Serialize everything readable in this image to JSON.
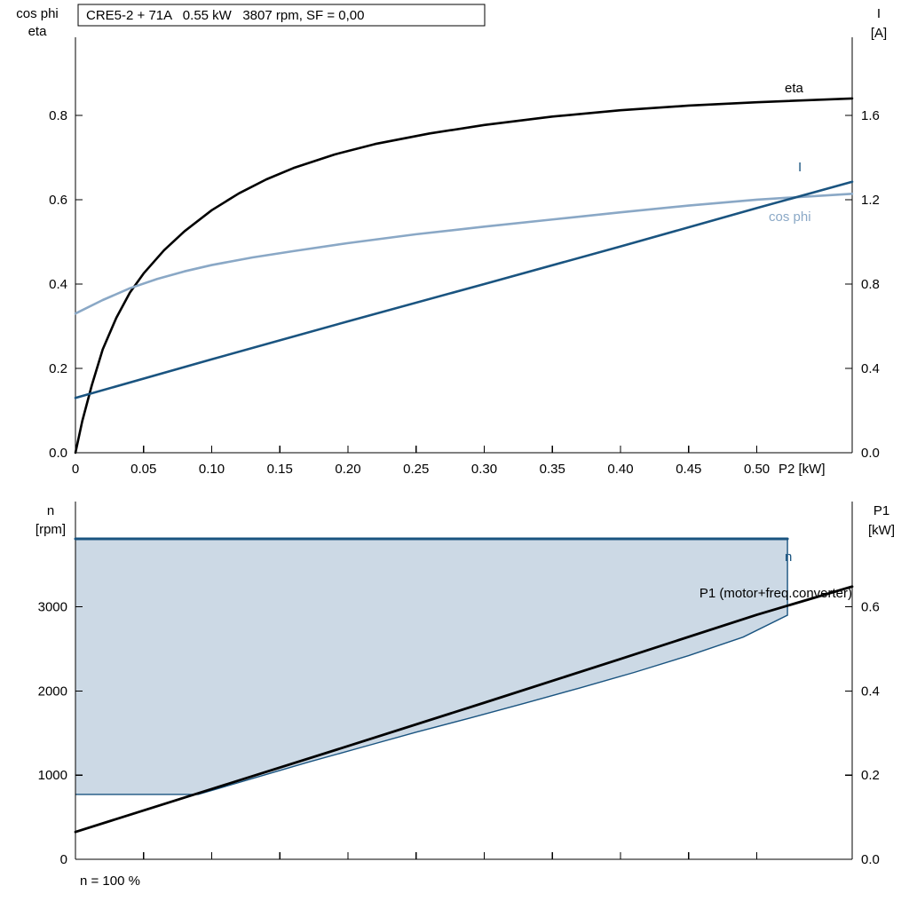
{
  "title_box": "CRE5-2 + 71A   0.55 kW   3807 rpm, SF = 0,00",
  "top_chart": {
    "left_header": [
      "cos phi",
      "eta"
    ],
    "right_header": [
      "I",
      "[A]"
    ],
    "x_axis_label": "P2 [kW]",
    "curve_labels": {
      "eta": "eta",
      "current": "I",
      "cos_phi": "cos phi"
    }
  },
  "bottom_chart": {
    "left_header": [
      "n",
      "[rpm]"
    ],
    "right_header": [
      "P1",
      "[kW]"
    ],
    "curve_labels": {
      "n": "n",
      "p1": "P1 (motor+freq.converter)"
    },
    "footer": "n = 100 %"
  },
  "colors": {
    "curve_black": "#000000",
    "curve_blue": "#1a5480",
    "curve_light_blue": "#8aa8c6",
    "band_fill": "#ccd9e5"
  },
  "chart_data": [
    {
      "id": "top",
      "type": "line",
      "title": "CRE5-2 + 71A   0.55 kW   3807 rpm, SF = 0,00",
      "x_label": "P2 [kW]",
      "x_range": [
        0,
        0.57
      ],
      "show_x_labels": true,
      "x_ticks": [
        [
          0,
          "0"
        ],
        [
          0.05,
          "0.05"
        ],
        [
          0.1,
          "0.10"
        ],
        [
          0.15,
          "0.15"
        ],
        [
          0.2,
          "0.20"
        ],
        [
          0.25,
          "0.25"
        ],
        [
          0.3,
          "0.30"
        ],
        [
          0.35,
          "0.35"
        ],
        [
          0.4,
          "0.40"
        ],
        [
          0.45,
          "0.45"
        ],
        [
          0.5,
          "0.50"
        ]
      ],
      "left_axis": {
        "label": "cos phi / eta",
        "range": [
          0,
          0.985
        ],
        "ticks": [
          [
            0.0,
            "0.0"
          ],
          [
            0.2,
            "0.2"
          ],
          [
            0.4,
            "0.4"
          ],
          [
            0.6,
            "0.6"
          ],
          [
            0.8,
            "0.8"
          ]
        ]
      },
      "right_axis": {
        "label": "I [A]",
        "range": [
          0,
          1.97
        ],
        "ticks": [
          [
            0.0,
            "0.0"
          ],
          [
            0.4,
            "0.4"
          ],
          [
            0.8,
            "0.8"
          ],
          [
            1.2,
            "1.2"
          ],
          [
            1.6,
            "1.6"
          ]
        ]
      },
      "series": [
        {
          "name": "eta",
          "axis": "left",
          "color": "#000000",
          "width": 2.6,
          "x": [
            0,
            0.005,
            0.012,
            0.02,
            0.03,
            0.04,
            0.05,
            0.065,
            0.08,
            0.1,
            0.12,
            0.14,
            0.16,
            0.19,
            0.22,
            0.26,
            0.3,
            0.35,
            0.4,
            0.45,
            0.5,
            0.57
          ],
          "y": [
            0.0,
            0.075,
            0.16,
            0.245,
            0.32,
            0.38,
            0.425,
            0.48,
            0.525,
            0.575,
            0.615,
            0.648,
            0.675,
            0.707,
            0.732,
            0.757,
            0.777,
            0.797,
            0.812,
            0.823,
            0.831,
            0.84
          ]
        },
        {
          "name": "cos phi",
          "axis": "left",
          "color": "#8aa8c6",
          "width": 2.6,
          "x": [
            0,
            0.02,
            0.04,
            0.06,
            0.08,
            0.1,
            0.13,
            0.16,
            0.2,
            0.25,
            0.3,
            0.35,
            0.4,
            0.45,
            0.5,
            0.57
          ],
          "y": [
            0.33,
            0.362,
            0.39,
            0.412,
            0.43,
            0.445,
            0.463,
            0.478,
            0.497,
            0.518,
            0.536,
            0.553,
            0.57,
            0.586,
            0.6,
            0.614
          ]
        },
        {
          "name": "I",
          "axis": "right",
          "color": "#1a5480",
          "width": 2.6,
          "x": [
            0,
            0.1,
            0.2,
            0.3,
            0.4,
            0.5,
            0.57
          ],
          "y": [
            0.26,
            0.443,
            0.623,
            0.8,
            0.978,
            1.16,
            1.285
          ]
        }
      ]
    },
    {
      "id": "bottom",
      "type": "line",
      "x_label": "",
      "x_range": [
        0,
        0.57
      ],
      "show_x_labels": false,
      "x_ticks": [
        [
          0,
          ""
        ],
        [
          0.05,
          ""
        ],
        [
          0.1,
          ""
        ],
        [
          0.15,
          ""
        ],
        [
          0.2,
          ""
        ],
        [
          0.25,
          ""
        ],
        [
          0.3,
          ""
        ],
        [
          0.35,
          ""
        ],
        [
          0.4,
          ""
        ],
        [
          0.45,
          ""
        ],
        [
          0.5,
          ""
        ]
      ],
      "left_axis": {
        "label": "n [rpm]",
        "range": [
          0,
          4250
        ],
        "ticks": [
          [
            0,
            "0"
          ],
          [
            1000,
            "1000"
          ],
          [
            2000,
            "2000"
          ],
          [
            3000,
            "3000"
          ]
        ]
      },
      "right_axis": {
        "label": "P1 [kW]",
        "range": [
          0,
          0.85
        ],
        "ticks": [
          [
            0.0,
            "0.0"
          ],
          [
            0.2,
            "0.2"
          ],
          [
            0.4,
            "0.4"
          ],
          [
            0.6,
            "0.6"
          ]
        ]
      },
      "band": {
        "name": "speed-control-range",
        "fill": "#ccd9e5",
        "stroke": "#1a5480",
        "upper": {
          "x": [
            0,
            0.5225
          ],
          "y": [
            3807,
            3807
          ]
        },
        "lower": {
          "x": [
            0,
            0.09,
            0.13,
            0.17,
            0.21,
            0.25,
            0.29,
            0.33,
            0.37,
            0.41,
            0.45,
            0.49,
            0.5225
          ],
          "y": [
            770,
            770,
            960,
            1150,
            1330,
            1510,
            1680,
            1855,
            2035,
            2220,
            2420,
            2640,
            2900
          ]
        }
      },
      "series": [
        {
          "name": "n",
          "axis": "left",
          "color": "#1a5480",
          "width": 3,
          "x": [
            0,
            0.5225
          ],
          "y": [
            3807,
            3807
          ]
        },
        {
          "name": "P1 (motor+freq.converter)",
          "axis": "right",
          "color": "#000000",
          "width": 2.8,
          "x": [
            0,
            0.1,
            0.2,
            0.3,
            0.4,
            0.5,
            0.57
          ],
          "y": [
            0.065,
            0.167,
            0.269,
            0.372,
            0.476,
            0.581,
            0.648
          ]
        }
      ],
      "annotations": {
        "n_value_rpm": 3807,
        "footer": "n = 100 %"
      }
    }
  ]
}
